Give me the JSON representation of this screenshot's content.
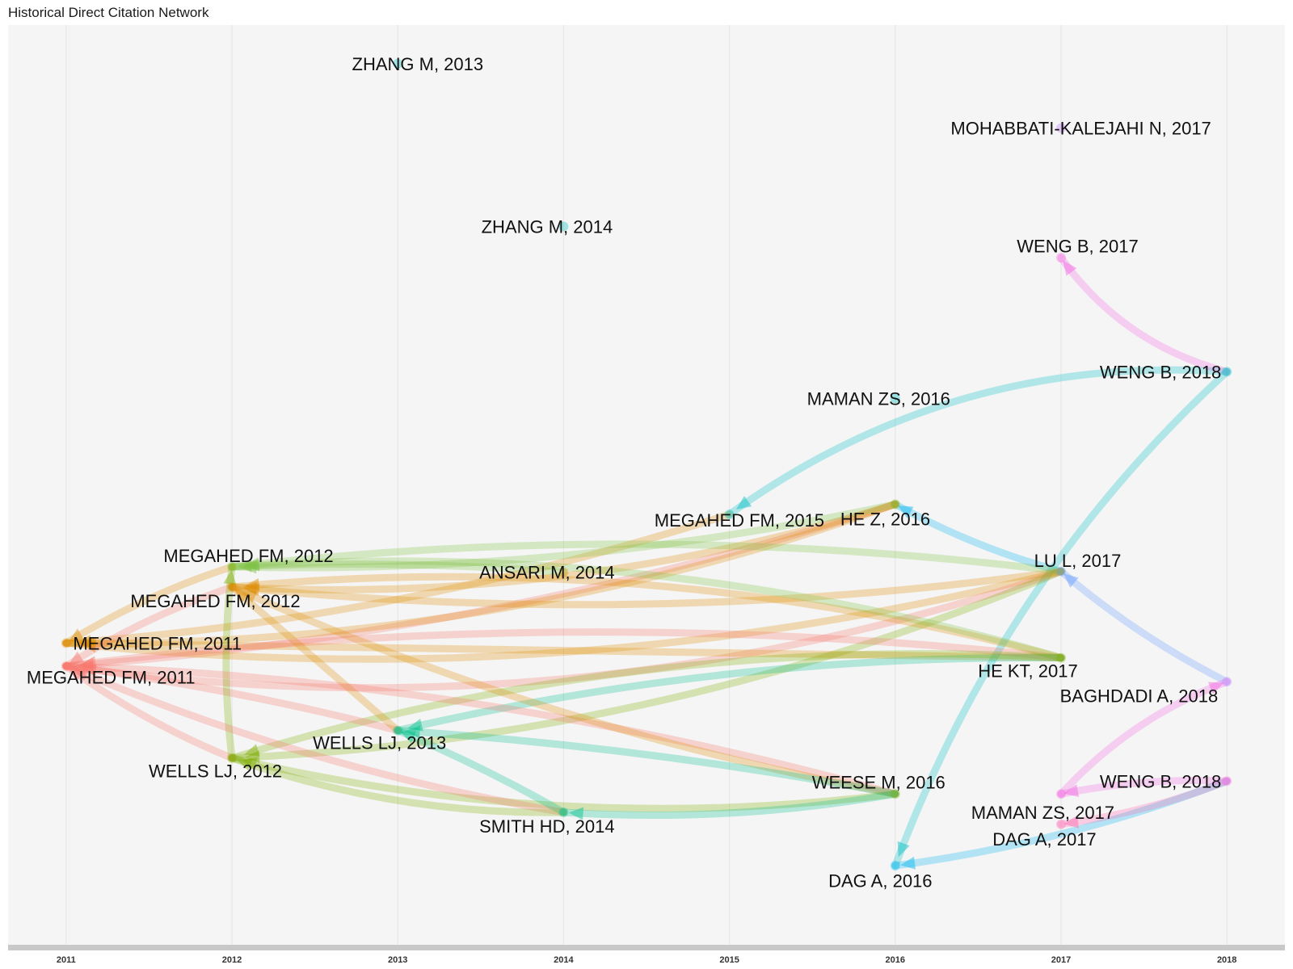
{
  "title": "Historical Direct Citation Network",
  "colors": {
    "panel_bg": "#f5f5f5",
    "grid": "#e4e4e4",
    "axis_bar": "#c8c8c8",
    "red": "#f8766d",
    "orange": "#de8c00",
    "olive": "#7cae00",
    "lightgreen": "#7cc242",
    "teal": "#00c08b",
    "cyan": "#00bfc4",
    "skyblue": "#00b4f0",
    "blue": "#619cff",
    "violet": "#c77cff",
    "pink": "#ff64b0",
    "magenta": "#f564e3"
  },
  "chart_data": {
    "type": "network",
    "x_axis": {
      "ticks": [
        2011,
        2012,
        2013,
        2014,
        2015,
        2016,
        2017,
        2018
      ],
      "range": [
        2010.65,
        2018.35
      ]
    },
    "y_range": [
      0,
      1
    ],
    "nodes": [
      {
        "id": "n1",
        "label": "ZHANG M, 2013",
        "year": 2013,
        "y": 0.958,
        "color": "cyan",
        "label_dx": 0.12,
        "label_dy": 0.0
      },
      {
        "id": "n2",
        "label": "MOHABBATI-KALEJAHI N, 2017",
        "year": 2017,
        "y": 0.888,
        "color": "violet",
        "label_dx": 0.12,
        "label_dy": 0.0
      },
      {
        "id": "n3",
        "label": "ZHANG M, 2014",
        "year": 2014,
        "y": 0.781,
        "color": "cyan",
        "label_dx": -0.1,
        "label_dy": 0.0
      },
      {
        "id": "n4",
        "label": "WENG B, 2017",
        "year": 2017,
        "y": 0.747,
        "color": "magenta",
        "label_dx": 0.1,
        "label_dy": 0.013
      },
      {
        "id": "n5",
        "label": "WENG B, 2018",
        "year": 2018,
        "y": 0.623,
        "color": "cyan",
        "label_dx": -0.4,
        "label_dy": 0.0
      },
      {
        "id": "n6",
        "label": "MAMAN ZS, 2016",
        "year": 2016,
        "y": 0.594,
        "color": "cyan",
        "label_dx": -0.1,
        "label_dy": 0.0
      },
      {
        "id": "n7",
        "label": "MEGAHED FM, 2015",
        "year": 2015,
        "y": 0.468,
        "color": "cyan",
        "label_dx": 0.06,
        "label_dy": -0.006
      },
      {
        "id": "n8",
        "label": "HE Z, 2016",
        "year": 2016,
        "y": 0.479,
        "color": "olive",
        "label_dx": -0.06,
        "label_dy": -0.016
      },
      {
        "id": "n9",
        "label": "MEGAHED FM, 2012",
        "year": 2012,
        "y": 0.411,
        "color": "lightgreen",
        "label_dx": 0.1,
        "label_dy": 0.012
      },
      {
        "id": "n10",
        "label": "ANSARI M, 2014",
        "year": 2014,
        "y": 0.405,
        "color": "orange",
        "label_dx": -0.1,
        "label_dy": 0.0
      },
      {
        "id": "n11",
        "label": "LU L, 2017",
        "year": 2017,
        "y": 0.406,
        "color": "blue",
        "label_dx": 0.1,
        "label_dy": 0.012
      },
      {
        "id": "n12",
        "label": "MEGAHED FM, 2012",
        "year": 2012,
        "y": 0.389,
        "color": "orange",
        "label_dx": -0.1,
        "label_dy": -0.015
      },
      {
        "id": "n13",
        "label": "MEGAHED FM, 2011",
        "year": 2011,
        "y": 0.328,
        "color": "orange",
        "label_dx": 0.55,
        "label_dy": 0.0
      },
      {
        "id": "n14",
        "label": "MEGAHED FM, 2011",
        "year": 2011,
        "y": 0.303,
        "color": "red",
        "label_dx": 0.27,
        "label_dy": -0.012
      },
      {
        "id": "n15",
        "label": "HE KT, 2017",
        "year": 2017,
        "y": 0.312,
        "color": "olive",
        "label_dx": -0.2,
        "label_dy": -0.014
      },
      {
        "id": "n16",
        "label": "BAGHDADI A, 2018",
        "year": 2018,
        "y": 0.286,
        "color": "violet",
        "label_dx": -0.53,
        "label_dy": -0.015
      },
      {
        "id": "n17",
        "label": "WELLS LJ, 2013",
        "year": 2013,
        "y": 0.233,
        "color": "teal",
        "label_dx": -0.11,
        "label_dy": -0.013
      },
      {
        "id": "n18",
        "label": "WELLS LJ, 2012",
        "year": 2012,
        "y": 0.203,
        "color": "olive",
        "label_dx": -0.1,
        "label_dy": -0.014
      },
      {
        "id": "n19",
        "label": "WEESE M, 2016",
        "year": 2016,
        "y": 0.164,
        "color": "olive",
        "label_dx": -0.1,
        "label_dy": 0.013
      },
      {
        "id": "n20",
        "label": "WENG B, 2018",
        "year": 2018,
        "y": 0.178,
        "color": "magenta",
        "label_dx": -0.4,
        "label_dy": 0.0
      },
      {
        "id": "n21",
        "label": "MAMAN ZS, 2017",
        "year": 2017,
        "y": 0.164,
        "color": "magenta",
        "label_dx": -0.11,
        "label_dy": -0.02
      },
      {
        "id": "n22",
        "label": "SMITH HD, 2014",
        "year": 2014,
        "y": 0.144,
        "color": "teal",
        "label_dx": -0.1,
        "label_dy": -0.015
      },
      {
        "id": "n23",
        "label": "DAG A, 2017",
        "year": 2017,
        "y": 0.131,
        "color": "pink",
        "label_dx": -0.1,
        "label_dy": -0.016
      },
      {
        "id": "n24",
        "label": "DAG A, 2016",
        "year": 2016,
        "y": 0.086,
        "color": "skyblue",
        "label_dx": -0.09,
        "label_dy": -0.016
      }
    ],
    "edges": [
      {
        "from": "n7",
        "to": "n5",
        "color": "cyan",
        "curve": -0.06
      },
      {
        "from": "n4",
        "to": "n5",
        "color": "magenta",
        "curve": 0.06
      },
      {
        "from": "n8",
        "to": "n11",
        "color": "skyblue",
        "curve": 0.02
      },
      {
        "from": "n11",
        "to": "n16",
        "color": "blue",
        "curve": 0.02
      },
      {
        "from": "n16",
        "to": "n21",
        "color": "magenta",
        "curve": 0.04
      },
      {
        "from": "n24",
        "to": "n20",
        "color": "skyblue",
        "curve": 0.02
      },
      {
        "from": "n24",
        "to": "n5",
        "color": "cyan",
        "curve": -0.04
      },
      {
        "from": "n23",
        "to": "n20",
        "color": "pink",
        "curve": 0.02
      },
      {
        "from": "n21",
        "to": "n20",
        "color": "magenta",
        "curve": -0.02
      },
      {
        "from": "n13",
        "to": "n7",
        "color": "orange",
        "curve": 0.02
      },
      {
        "from": "n14",
        "to": "n8",
        "color": "red",
        "curve": 0.02
      },
      {
        "from": "n13",
        "to": "n8",
        "color": "orange",
        "curve": 0.03
      },
      {
        "from": "n12",
        "to": "n8",
        "color": "orange",
        "curve": 0.03
      },
      {
        "from": "n9",
        "to": "n8",
        "color": "lightgreen",
        "curve": 0.02
      },
      {
        "from": "n9",
        "to": "n10",
        "color": "lightgreen",
        "curve": -0.01
      },
      {
        "from": "n13",
        "to": "n11",
        "color": "orange",
        "curve": 0.03
      },
      {
        "from": "n14",
        "to": "n11",
        "color": "red",
        "curve": 0.04
      },
      {
        "from": "n12",
        "to": "n11",
        "color": "orange",
        "curve": 0.02
      },
      {
        "from": "n9",
        "to": "n11",
        "color": "lightgreen",
        "curve": -0.02
      },
      {
        "from": "n18",
        "to": "n11",
        "color": "olive",
        "curve": 0.03
      },
      {
        "from": "n13",
        "to": "n15",
        "color": "orange",
        "curve": 0.0
      },
      {
        "from": "n14",
        "to": "n15",
        "color": "red",
        "curve": -0.02
      },
      {
        "from": "n12",
        "to": "n15",
        "color": "orange",
        "curve": -0.03
      },
      {
        "from": "n9",
        "to": "n15",
        "color": "lightgreen",
        "curve": -0.03
      },
      {
        "from": "n17",
        "to": "n15",
        "color": "teal",
        "curve": -0.02
      },
      {
        "from": "n18",
        "to": "n15",
        "color": "olive",
        "curve": -0.03
      },
      {
        "from": "n14",
        "to": "n12",
        "color": "red",
        "curve": -0.02
      },
      {
        "from": "n13",
        "to": "n9",
        "color": "orange",
        "curve": -0.02
      },
      {
        "from": "n14",
        "to": "n17",
        "color": "red",
        "curve": -0.01
      },
      {
        "from": "n12",
        "to": "n17",
        "color": "orange",
        "curve": 0.0
      },
      {
        "from": "n9",
        "to": "n18",
        "color": "olive",
        "curve": 0.02
      },
      {
        "from": "n14",
        "to": "n18",
        "color": "red",
        "curve": 0.02
      },
      {
        "from": "n14",
        "to": "n19",
        "color": "red",
        "curve": -0.02
      },
      {
        "from": "n12",
        "to": "n19",
        "color": "orange",
        "curve": 0.02
      },
      {
        "from": "n17",
        "to": "n19",
        "color": "teal",
        "curve": -0.01
      },
      {
        "from": "n18",
        "to": "n19",
        "color": "olive",
        "curve": 0.03
      },
      {
        "from": "n14",
        "to": "n22",
        "color": "red",
        "curve": 0.02
      },
      {
        "from": "n17",
        "to": "n22",
        "color": "teal",
        "curve": -0.01
      },
      {
        "from": "n18",
        "to": "n22",
        "color": "olive",
        "curve": 0.03
      },
      {
        "from": "n22",
        "to": "n19",
        "color": "teal",
        "curve": 0.02
      }
    ]
  }
}
